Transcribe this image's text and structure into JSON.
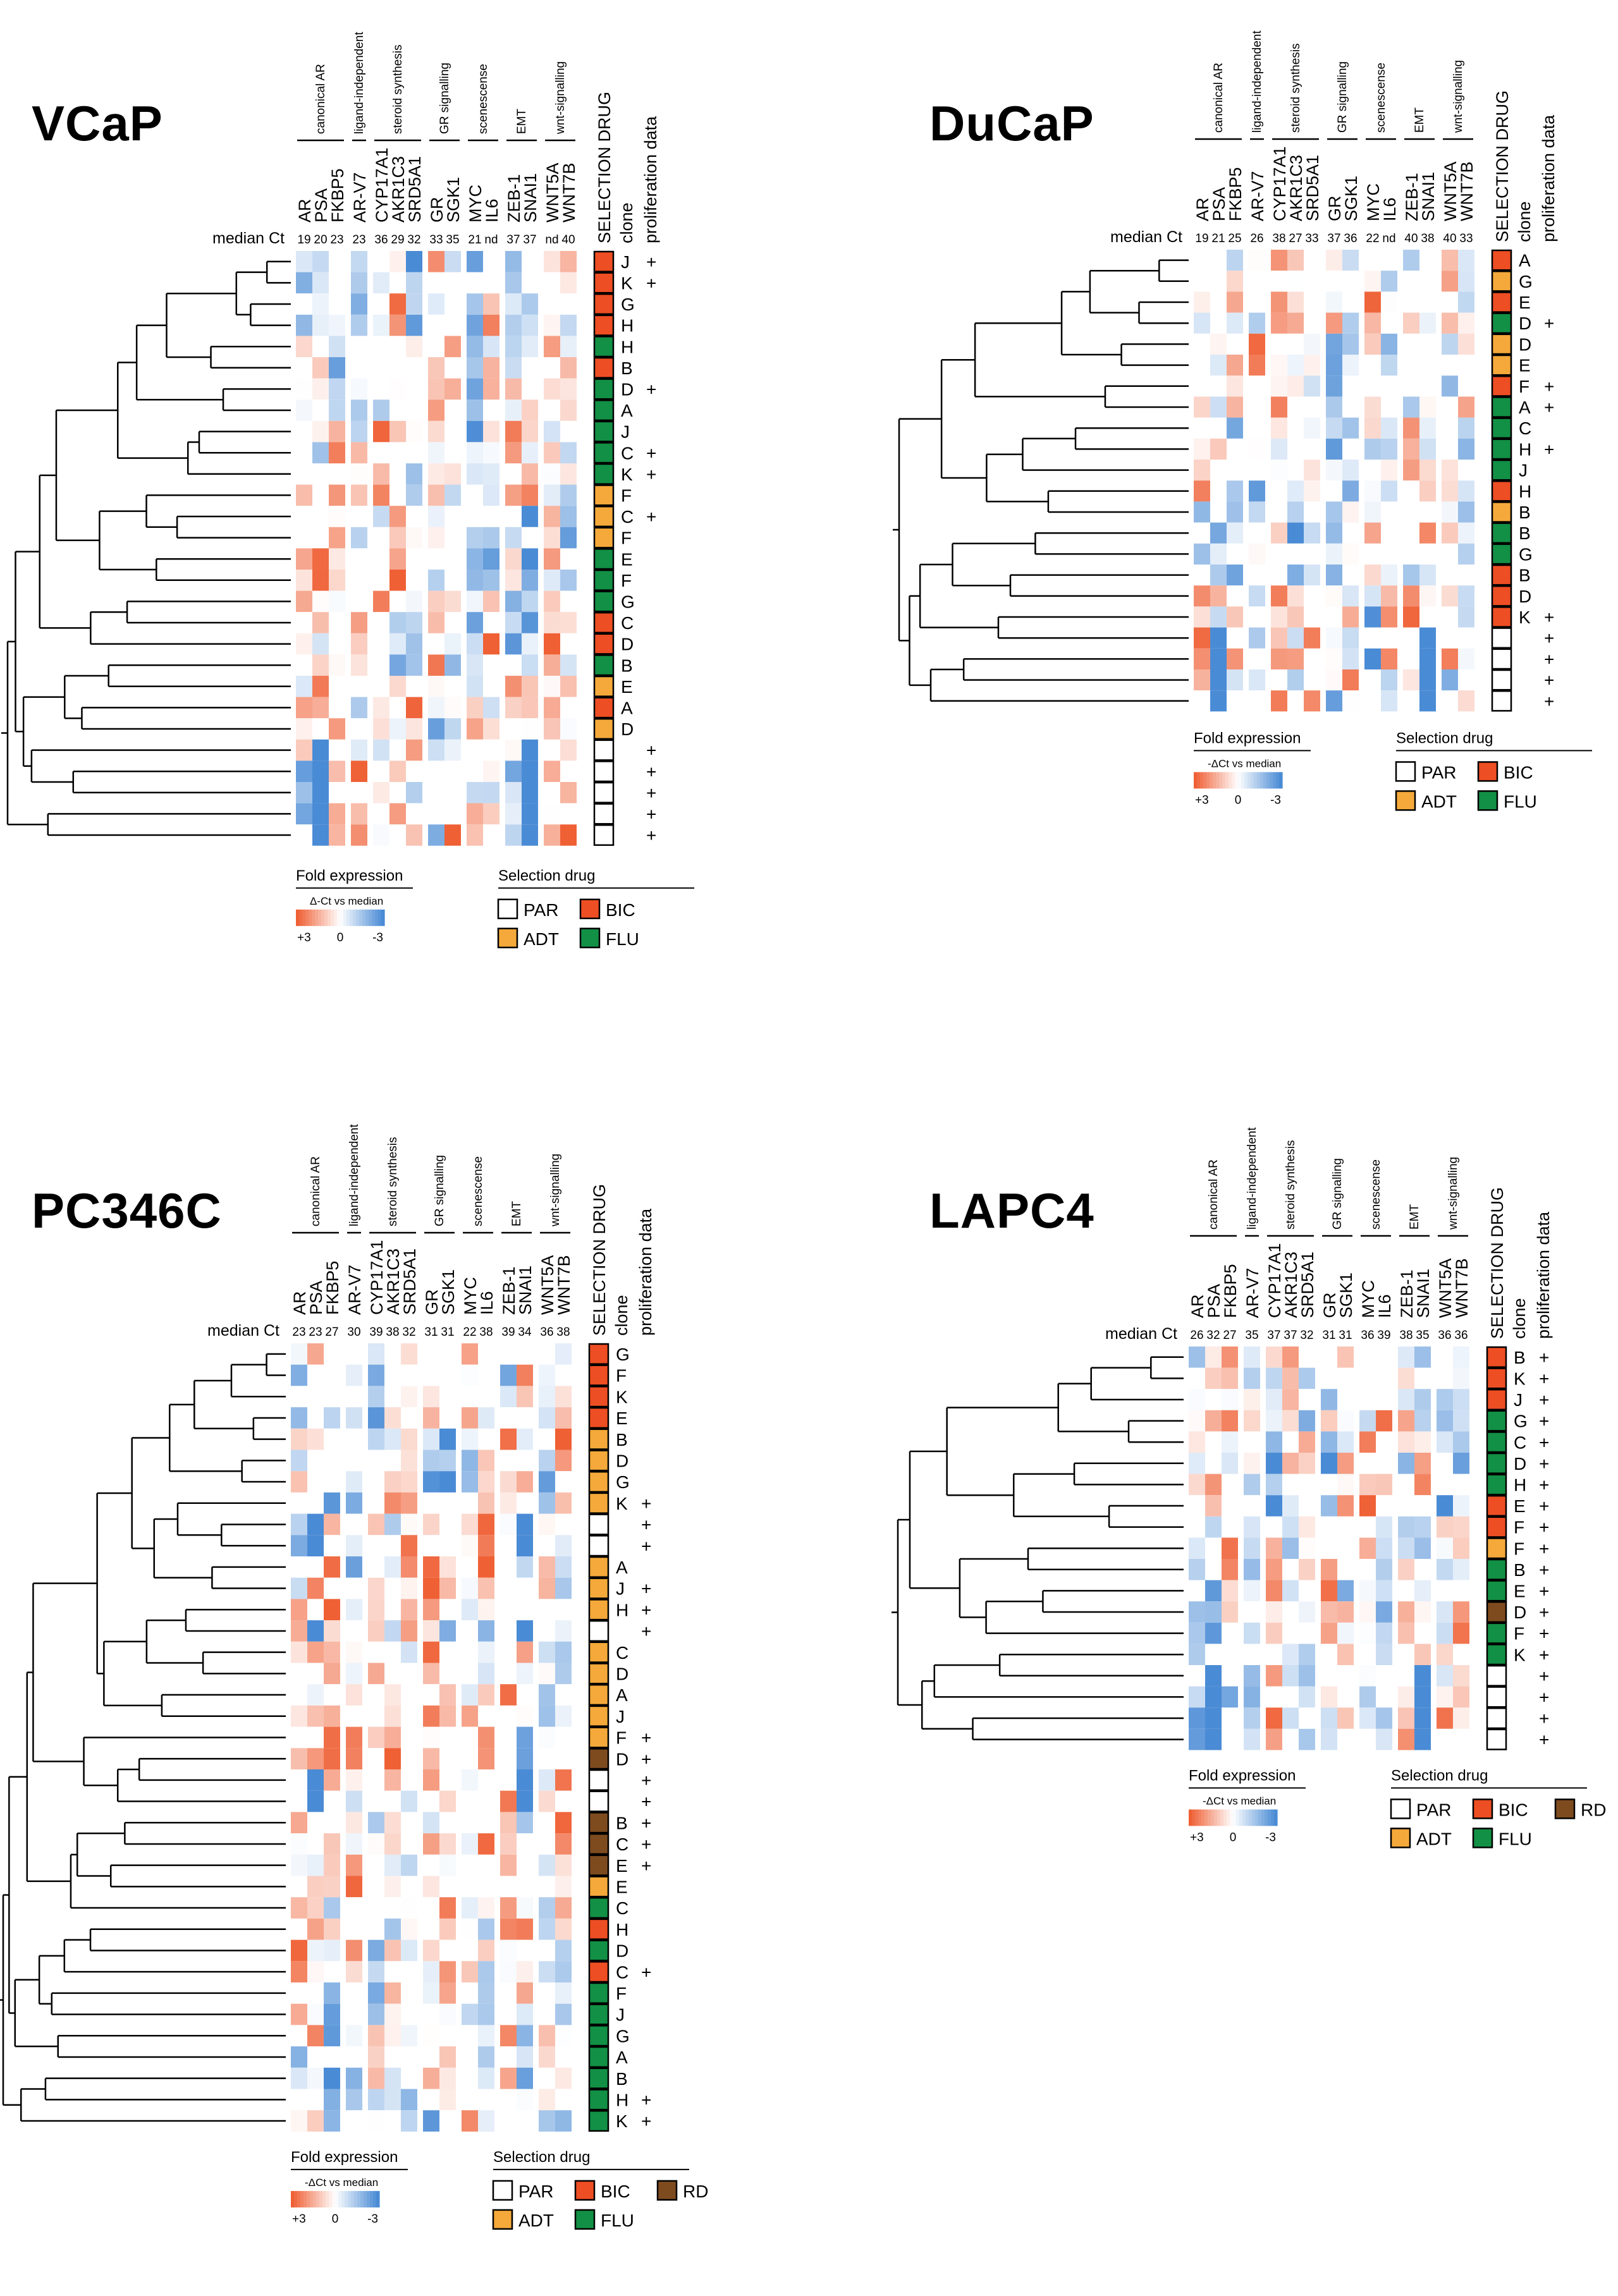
{
  "colors": {
    "up": "#ef6035",
    "down": "#4a8bd5",
    "PAR": "#ffffff",
    "BIC": "#ee4e23",
    "ADT": "#f4a93a",
    "FLU": "#129045",
    "RD": "#7e4b1f"
  },
  "header_labels": {
    "median_ct": "median Ct",
    "selection_drug": "SELECTION DRUG",
    "clone": "clone",
    "proliferation": "proliferation data"
  },
  "legend_labels": {
    "fold_title": "Fold expression",
    "fold_sub_dct": "Δ-Ct vs median",
    "fold_sub_neg": "-ΔCt vs median",
    "plus3": "+3",
    "zero": "0",
    "minus3": "-3",
    "sel_title": "Selection drug",
    "PAR": "PAR",
    "BIC": "BIC",
    "ADT": "ADT",
    "FLU": "FLU",
    "RD": "RD"
  },
  "chart_data": [
    {
      "type": "heatmap",
      "title": "VCaP",
      "genes": [
        "AR",
        "PSA",
        "FKBP5",
        "AR-V7",
        "CYP17A1",
        "AKR1C3",
        "SRD5A1",
        "GR",
        "SGK1",
        "MYC",
        "IL6",
        "ZEB-1",
        "SNAI1",
        "WNT5A",
        "WNT7B"
      ],
      "median_ct": [
        "19",
        "20",
        "23",
        "23",
        "36",
        "29",
        "32",
        "33",
        "35",
        "21",
        "nd",
        "37",
        "37",
        "nd",
        "40"
      ],
      "groups": [
        {
          "label": "canonical AR",
          "span": [
            0,
            2
          ]
        },
        {
          "label": "ligand-independent",
          "span": [
            3,
            3
          ]
        },
        {
          "label": "steroid synthesis",
          "span": [
            4,
            6
          ]
        },
        {
          "label": "GR signalling",
          "span": [
            7,
            8
          ]
        },
        {
          "label": "scenescense",
          "span": [
            9,
            10
          ]
        },
        {
          "label": "EMT",
          "span": [
            11,
            12
          ]
        },
        {
          "label": "wnt-signalling",
          "span": [
            13,
            14
          ]
        }
      ],
      "clones": [
        "J",
        "K",
        "G",
        "H",
        "H",
        "B",
        "D",
        "A",
        "J",
        "C",
        "K",
        "F",
        "C",
        "F",
        "E",
        "F",
        "G",
        "C",
        "D",
        "B",
        "E",
        "A",
        "D",
        "",
        "",
        "",
        "",
        ""
      ],
      "drugs": [
        "BIC",
        "BIC",
        "BIC",
        "BIC",
        "FLU",
        "BIC",
        "FLU",
        "FLU",
        "FLU",
        "FLU",
        "FLU",
        "ADT",
        "ADT",
        "ADT",
        "FLU",
        "FLU",
        "FLU",
        "BIC",
        "BIC",
        "FLU",
        "ADT",
        "BIC",
        "ADT",
        "PAR",
        "PAR",
        "PAR",
        "PAR",
        "PAR"
      ],
      "prolif": [
        "+",
        "+",
        "",
        "",
        "",
        "",
        "+",
        "",
        "",
        "+",
        "+",
        "",
        "+",
        "",
        "",
        "",
        "",
        "",
        "",
        "",
        "",
        "",
        "",
        "+",
        "+",
        "+",
        "+",
        "+"
      ],
      "expression_scale": [
        -3,
        3
      ]
    },
    {
      "type": "heatmap",
      "title": "DuCaP",
      "genes": [
        "AR",
        "PSA",
        "FKBP5",
        "AR-V7",
        "CYP17A1",
        "AKR1C3",
        "SRD5A1",
        "GR",
        "SGK1",
        "MYC",
        "IL6",
        "ZEB-1",
        "SNAI1",
        "WNT5A",
        "WNT7B"
      ],
      "median_ct": [
        "19",
        "21",
        "25",
        "26",
        "38",
        "27",
        "33",
        "37",
        "36",
        "22",
        "nd",
        "40",
        "38",
        "40",
        "33"
      ],
      "groups": [
        {
          "label": "canonical AR",
          "span": [
            0,
            2
          ]
        },
        {
          "label": "ligand-independent",
          "span": [
            3,
            3
          ]
        },
        {
          "label": "steroid synthesis",
          "span": [
            4,
            6
          ]
        },
        {
          "label": "GR signalling",
          "span": [
            7,
            8
          ]
        },
        {
          "label": "scenescense",
          "span": [
            9,
            10
          ]
        },
        {
          "label": "EMT",
          "span": [
            11,
            12
          ]
        },
        {
          "label": "wnt-signalling",
          "span": [
            13,
            14
          ]
        }
      ],
      "clones": [
        "A",
        "G",
        "E",
        "D",
        "D",
        "E",
        "F",
        "A",
        "C",
        "H",
        "J",
        "H",
        "B",
        "B",
        "G",
        "B",
        "D",
        "K",
        "",
        "",
        "",
        ""
      ],
      "drugs": [
        "BIC",
        "ADT",
        "BIC",
        "FLU",
        "ADT",
        "ADT",
        "BIC",
        "FLU",
        "FLU",
        "FLU",
        "FLU",
        "BIC",
        "ADT",
        "FLU",
        "FLU",
        "BIC",
        "BIC",
        "BIC",
        "PAR",
        "PAR",
        "PAR",
        "PAR"
      ],
      "prolif": [
        "",
        "",
        "",
        "+",
        "",
        "",
        "+",
        "+",
        "",
        "+",
        "",
        "",
        "",
        "",
        "",
        "",
        "",
        "+",
        "+",
        "+",
        "+",
        "+"
      ],
      "expression_scale": [
        -3,
        3
      ]
    },
    {
      "type": "heatmap",
      "title": "PC346C",
      "genes": [
        "AR",
        "PSA",
        "FKBP5",
        "AR-V7",
        "CYP17A1",
        "AKR1C3",
        "SRD5A1",
        "GR",
        "SGK1",
        "MYC",
        "IL6",
        "ZEB-1",
        "SNAI1",
        "WNT5A",
        "WNT7B"
      ],
      "median_ct": [
        "23",
        "23",
        "27",
        "30",
        "39",
        "38",
        "32",
        "31",
        "31",
        "22",
        "38",
        "39",
        "34",
        "36",
        "38"
      ],
      "groups": [
        {
          "label": "canonical AR",
          "span": [
            0,
            2
          ]
        },
        {
          "label": "ligand-independent",
          "span": [
            3,
            3
          ]
        },
        {
          "label": "steroid synthesis",
          "span": [
            4,
            6
          ]
        },
        {
          "label": "GR signalling",
          "span": [
            7,
            8
          ]
        },
        {
          "label": "scenescense",
          "span": [
            9,
            10
          ]
        },
        {
          "label": "EMT",
          "span": [
            11,
            12
          ]
        },
        {
          "label": "wnt-signalling",
          "span": [
            13,
            14
          ]
        }
      ],
      "clones": [
        "G",
        "F",
        "K",
        "E",
        "B",
        "D",
        "G",
        "K",
        "",
        "",
        "A",
        "J",
        "H",
        "",
        "C",
        "D",
        "A",
        "J",
        "F",
        "D",
        "",
        "",
        "B",
        "C",
        "E",
        "E",
        "C",
        "H",
        "D",
        "C",
        "F",
        "J",
        "G",
        "A",
        "B",
        "H",
        "K"
      ],
      "drugs": [
        "BIC",
        "BIC",
        "BIC",
        "BIC",
        "ADT",
        "ADT",
        "ADT",
        "ADT",
        "PAR",
        "PAR",
        "ADT",
        "ADT",
        "ADT",
        "PAR",
        "ADT",
        "ADT",
        "ADT",
        "ADT",
        "ADT",
        "RD",
        "PAR",
        "PAR",
        "RD",
        "RD",
        "RD",
        "ADT",
        "FLU",
        "BIC",
        "FLU",
        "BIC",
        "FLU",
        "FLU",
        "FLU",
        "FLU",
        "FLU",
        "FLU",
        "FLU"
      ],
      "prolif": [
        "",
        "",
        "",
        "",
        "",
        "",
        "",
        "+",
        "+",
        "+",
        "",
        "+",
        "+",
        "+",
        "",
        "",
        "",
        "",
        "+",
        "+",
        "+",
        "+",
        "+",
        "+",
        "+",
        "",
        "",
        "",
        "",
        "+",
        "",
        "",
        "",
        "",
        "",
        "+",
        "+"
      ],
      "expression_scale": [
        -3,
        3
      ]
    },
    {
      "type": "heatmap",
      "title": "LAPC4",
      "genes": [
        "AR",
        "PSA",
        "FKBP5",
        "AR-V7",
        "CYP17A1",
        "AKR1C3",
        "SRD5A1",
        "GR",
        "SGK1",
        "MYC",
        "IL6",
        "ZEB-1",
        "SNAI1",
        "WNT5A",
        "WNT7B"
      ],
      "median_ct": [
        "26",
        "32",
        "27",
        "35",
        "37",
        "37",
        "32",
        "31",
        "31",
        "36",
        "39",
        "38",
        "35",
        "36",
        "36"
      ],
      "groups": [
        {
          "label": "canonical AR",
          "span": [
            0,
            2
          ]
        },
        {
          "label": "ligand-independent",
          "span": [
            3,
            3
          ]
        },
        {
          "label": "steroid synthesis",
          "span": [
            4,
            6
          ]
        },
        {
          "label": "GR signalling",
          "span": [
            7,
            8
          ]
        },
        {
          "label": "scenescense",
          "span": [
            9,
            10
          ]
        },
        {
          "label": "EMT",
          "span": [
            11,
            12
          ]
        },
        {
          "label": "wnt-signalling",
          "span": [
            13,
            14
          ]
        }
      ],
      "clones": [
        "B",
        "K",
        "J",
        "G",
        "C",
        "D",
        "H",
        "E",
        "F",
        "F",
        "B",
        "E",
        "D",
        "F",
        "K",
        "",
        "",
        "",
        ""
      ],
      "drugs": [
        "BIC",
        "BIC",
        "BIC",
        "FLU",
        "FLU",
        "FLU",
        "FLU",
        "BIC",
        "BIC",
        "ADT",
        "FLU",
        "FLU",
        "RD",
        "FLU",
        "FLU",
        "PAR",
        "PAR",
        "PAR",
        "PAR"
      ],
      "prolif": [
        "+",
        "+",
        "+",
        "+",
        "+",
        "+",
        "+",
        "+",
        "+",
        "+",
        "+",
        "+",
        "+",
        "+",
        "+",
        "+",
        "+",
        "+",
        "+"
      ],
      "expression_scale": [
        -3,
        3
      ]
    }
  ]
}
